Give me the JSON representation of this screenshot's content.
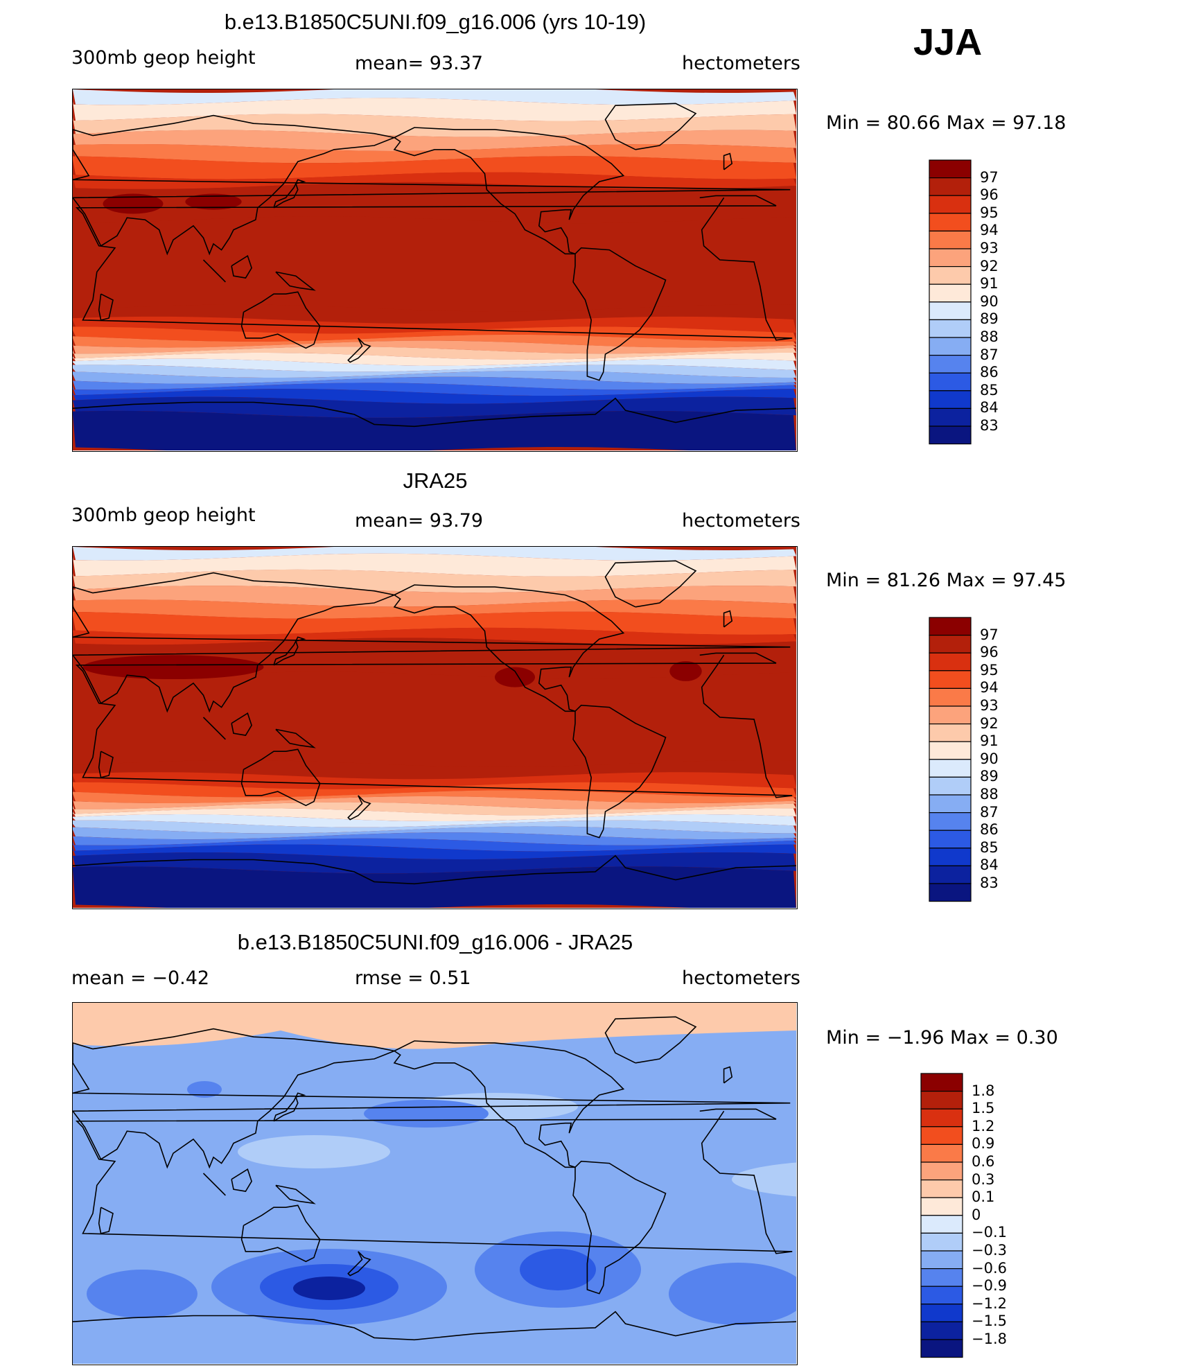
{
  "season": "JJA",
  "panels": [
    {
      "title": "b.e13.B1850C5UNI.f09_g16.006 (yrs 10-19)",
      "left_label": "300mb geop height",
      "center_label": "mean=   93.37",
      "right_label": "hectometers",
      "stats": "Min =   80.66  Max =   97.18",
      "kind": "abs",
      "shift_deg": 0
    },
    {
      "title": "JRA25",
      "left_label": "300mb geop height",
      "center_label": "mean=   93.79",
      "right_label": "hectometers",
      "stats": "Min =   81.26  Max =   97.45",
      "kind": "abs",
      "shift_deg": 3
    },
    {
      "title": "b.e13.B1850C5UNI.f09_g16.006 - JRA25",
      "left_label": "mean =    −0.42",
      "center_label": "rmse =     0.51",
      "right_label": "hectometers",
      "stats": "Min =   −1.96  Max =     0.30",
      "kind": "diff",
      "shift_deg": 0
    }
  ],
  "colorbars": {
    "abs": {
      "labels": [
        "97",
        "96",
        "95",
        "94",
        "93",
        "92",
        "91",
        "90",
        "89",
        "88",
        "87",
        "86",
        "85",
        "84",
        "83"
      ],
      "colors": [
        "#8b0000",
        "#b3200b",
        "#d93010",
        "#f24e1e",
        "#fa7a48",
        "#fca37c",
        "#fdcaab",
        "#fee9d9",
        "#dbeafc",
        "#b0cdf8",
        "#86adf3",
        "#5683ee",
        "#2c5ae4",
        "#1039cc",
        "#0c229f",
        "#0a1580"
      ]
    },
    "diff": {
      "labels": [
        "1.8",
        "1.5",
        "1.2",
        "0.9",
        "0.6",
        "0.3",
        "0.1",
        "0",
        "−0.1",
        "−0.3",
        "−0.6",
        "−0.9",
        "−1.2",
        "−1.5",
        "−1.8"
      ],
      "colors": [
        "#8b0000",
        "#b3200b",
        "#d93010",
        "#f24e1e",
        "#fa7a48",
        "#fca37c",
        "#fdcaab",
        "#fee9d9",
        "#dbeafc",
        "#b0cdf8",
        "#86adf3",
        "#5683ee",
        "#2c5ae4",
        "#1039cc",
        "#0c229f",
        "#0a1580"
      ]
    }
  }
}
